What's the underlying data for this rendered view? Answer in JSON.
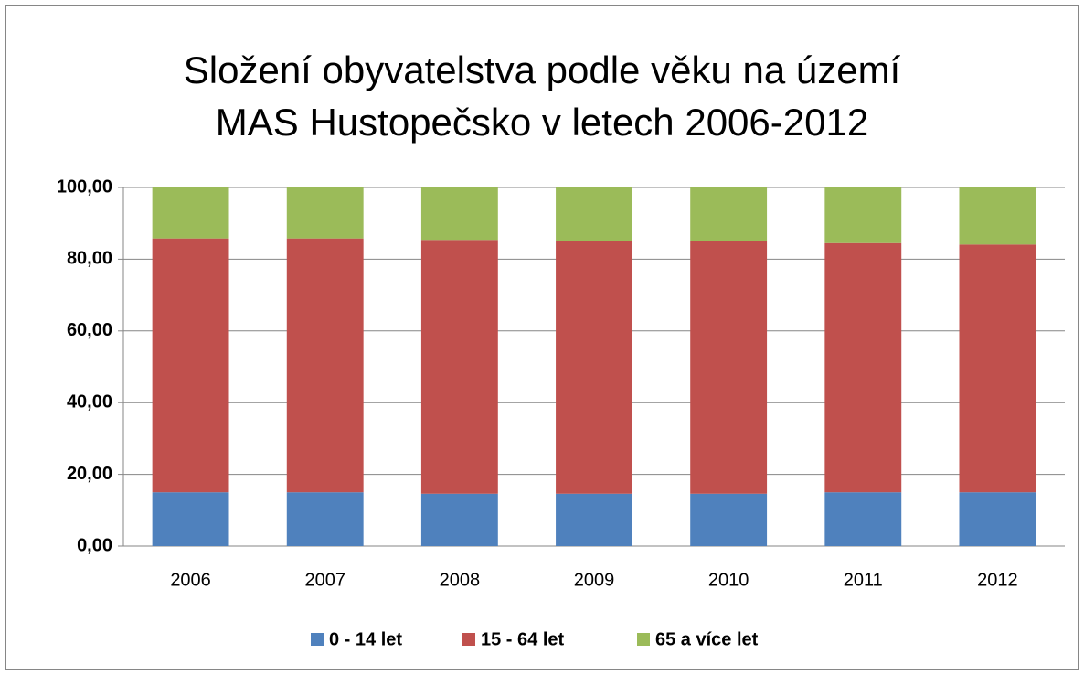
{
  "chart_data": {
    "type": "stacked_bar",
    "title": [
      "Složení obyvatelstva podle věku na území",
      "MAS Hustopečsko v letech 2006-2012"
    ],
    "categories": [
      "2006",
      "2007",
      "2008",
      "2009",
      "2010",
      "2011",
      "2012"
    ],
    "series": [
      {
        "name": "0 - 14 let",
        "color": "#4f81bd",
        "values": [
          15.0,
          15.0,
          14.6,
          14.6,
          14.6,
          15.0,
          15.0
        ]
      },
      {
        "name": "15 - 64 let",
        "color": "#c0504d",
        "values": [
          70.8,
          70.8,
          70.8,
          70.5,
          70.5,
          69.5,
          69.1
        ]
      },
      {
        "name": "65 a více let",
        "color": "#9bbb59",
        "values": [
          14.2,
          14.2,
          14.6,
          14.9,
          14.9,
          15.5,
          15.9
        ]
      }
    ],
    "ylim": [
      0,
      100
    ],
    "yticks": [
      {
        "value": 0,
        "label": "0,00"
      },
      {
        "value": 20,
        "label": "20,00"
      },
      {
        "value": 40,
        "label": "40,00"
      },
      {
        "value": 60,
        "label": "60,00"
      },
      {
        "value": 80,
        "label": "80,00"
      },
      {
        "value": 100,
        "label": "100,00"
      }
    ],
    "grid": true,
    "legend": "bottom"
  }
}
